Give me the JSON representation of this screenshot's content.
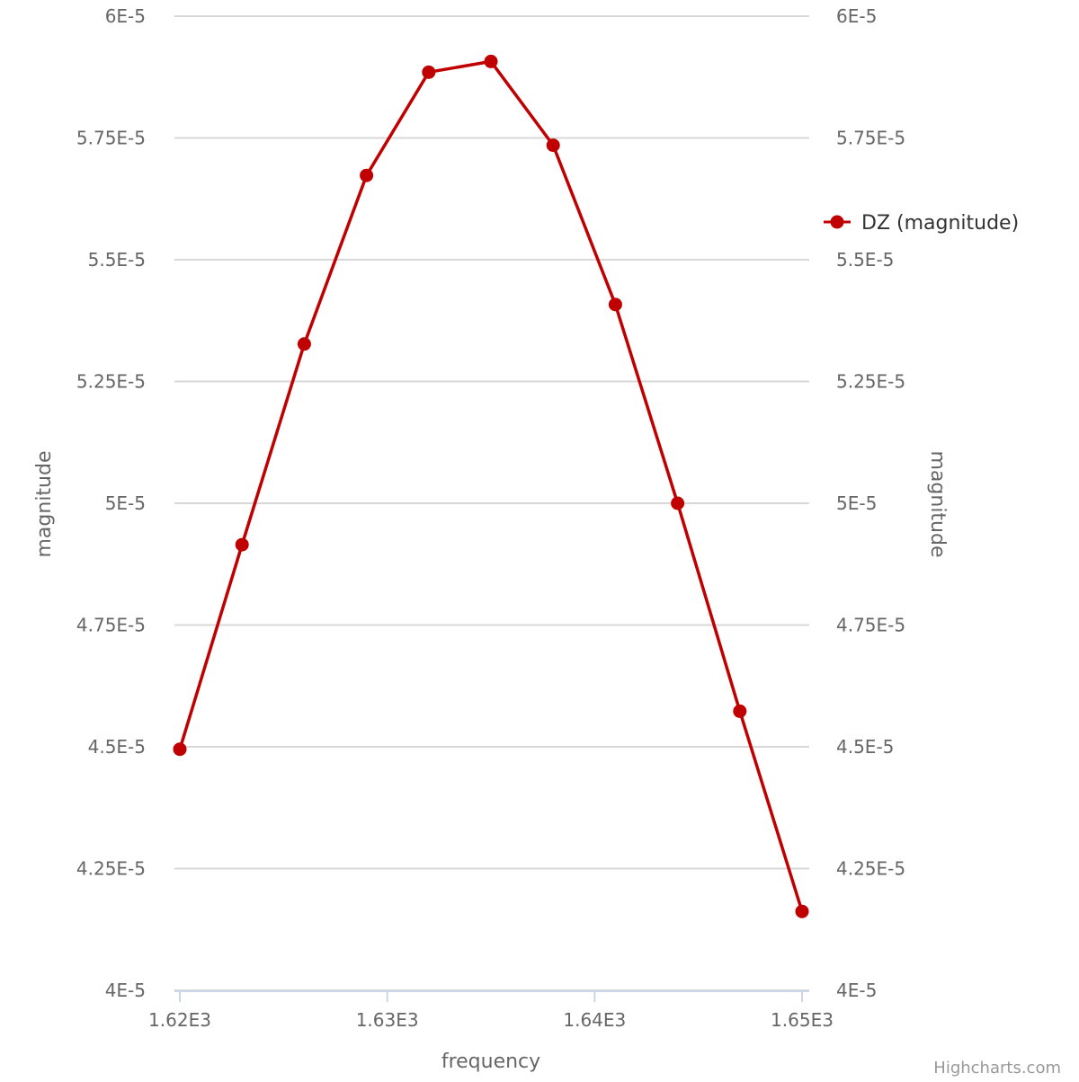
{
  "chart_data": {
    "type": "line",
    "title": "",
    "xlabel": "frequency",
    "ylabel": "magnitude",
    "ylabel_right": "magnitude",
    "xlim": [
      1620,
      1650
    ],
    "ylim": [
      4e-05,
      6e-05
    ],
    "x_ticks": [
      {
        "value": 1620,
        "label": "1.62E3"
      },
      {
        "value": 1630,
        "label": "1.63E3"
      },
      {
        "value": 1640,
        "label": "1.64E3"
      },
      {
        "value": 1650,
        "label": "1.65E3"
      }
    ],
    "y_ticks": [
      {
        "value": 4e-05,
        "label": "4E-5"
      },
      {
        "value": 4.25e-05,
        "label": "4.25E-5"
      },
      {
        "value": 4.5e-05,
        "label": "4.5E-5"
      },
      {
        "value": 4.75e-05,
        "label": "4.75E-5"
      },
      {
        "value": 5e-05,
        "label": "5E-5"
      },
      {
        "value": 5.25e-05,
        "label": "5.25E-5"
      },
      {
        "value": 5.5e-05,
        "label": "5.5E-5"
      },
      {
        "value": 5.75e-05,
        "label": "5.75E-5"
      },
      {
        "value": 6e-05,
        "label": "6E-5"
      }
    ],
    "grid": true,
    "legend_position": "right",
    "series": [
      {
        "name": "DZ (magnitude)",
        "color": "#c00000",
        "x": [
          1620,
          1623,
          1626,
          1629,
          1632,
          1635,
          1638,
          1641,
          1644,
          1647,
          1650
        ],
        "values": [
          4.495e-05,
          4.915e-05,
          5.327e-05,
          5.673e-05,
          5.885e-05,
          5.907e-05,
          5.735e-05,
          5.408e-05,
          5e-05,
          4.573e-05,
          4.162e-05
        ]
      }
    ]
  },
  "credit": "Highcharts.com"
}
